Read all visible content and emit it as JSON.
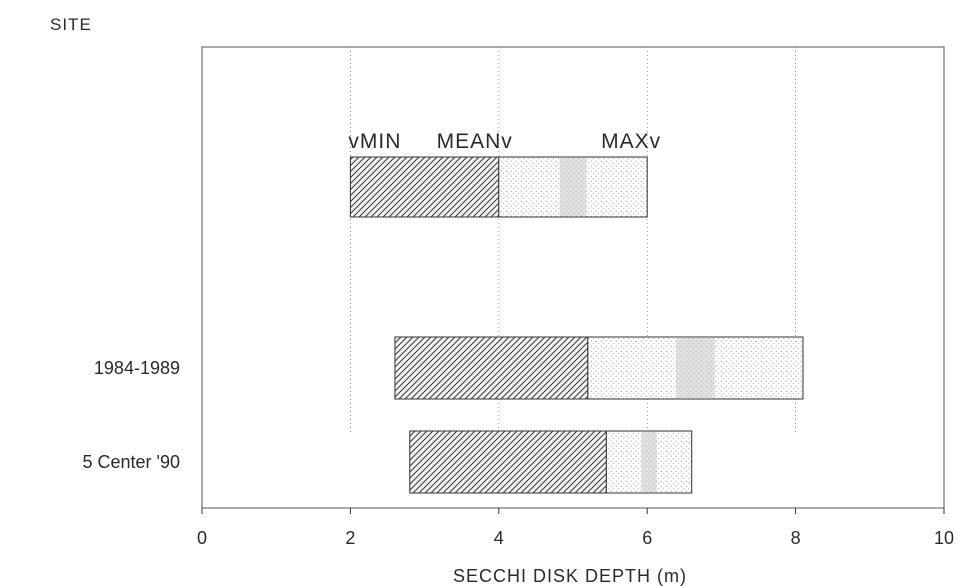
{
  "chart_data": {
    "type": "bar",
    "orientation": "horizontal",
    "ylabel": "SITE",
    "xlabel": "SECCHI DISK DEPTH (m)",
    "xlim": [
      0,
      10
    ],
    "x_ticks": [
      "0",
      "2",
      "4",
      "6",
      "8",
      "10"
    ],
    "grid": "vertical dotted lines at 2, 4, 6, 8",
    "legend": {
      "min_label": "vMIN",
      "mean_label": "MEANv",
      "max_label": "MAXv",
      "example_min": 2,
      "example_mean": 4,
      "example_max": 6
    },
    "categories": [
      "1984-1989",
      "5 Center '90"
    ],
    "series": [
      {
        "name": "MIN",
        "values": [
          2.6,
          2.8
        ]
      },
      {
        "name": "MEAN",
        "values": [
          5.2,
          5.45
        ]
      },
      {
        "name": "MAX",
        "values": [
          8.1,
          6.6
        ]
      }
    ]
  }
}
